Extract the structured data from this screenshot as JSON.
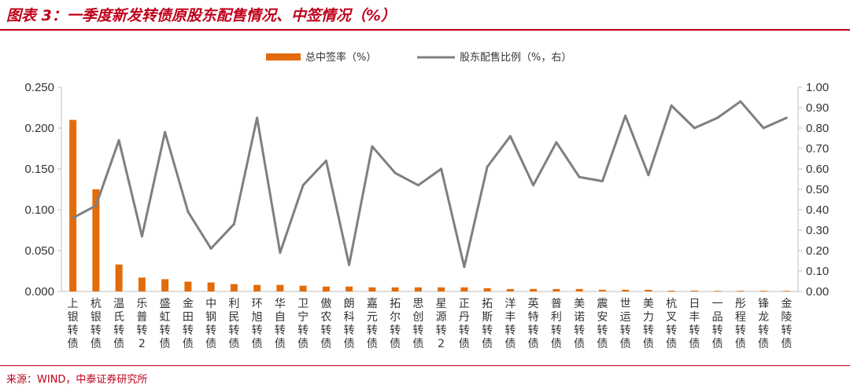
{
  "header": {
    "title": "图表 3：一季度新发转债原股东配售情况、中签情况（%）"
  },
  "footer": {
    "source": "来源：WIND，中泰证券研究所"
  },
  "colors": {
    "bar": "#e36c0a",
    "line": "#7f7f7f",
    "accent": "#c0001b"
  },
  "chart_data": {
    "type": "bar",
    "categories": [
      "上银转债",
      "杭银转债",
      "温氏转债",
      "乐普转2",
      "盛虹转债",
      "金田转债",
      "中钢转债",
      "利民转债",
      "环旭转债",
      "华自转债",
      "卫宁转债",
      "傲农转债",
      "朗科转债",
      "嘉元转债",
      "拓尔转债",
      "思创转债",
      "星源转2",
      "正丹转债",
      "拓斯转债",
      "洋丰转债",
      "英特转债",
      "普利转债",
      "美诺转债",
      "震安转债",
      "世运转债",
      "美力转债",
      "杭叉转债",
      "日丰转债",
      "一品转债",
      "彤程转债",
      "锋龙转债",
      "金陵转债"
    ],
    "series": [
      {
        "name": "总中签率（%）",
        "type": "bar",
        "axis": "left",
        "values": [
          0.21,
          0.125,
          0.033,
          0.017,
          0.015,
          0.012,
          0.011,
          0.009,
          0.008,
          0.008,
          0.007,
          0.006,
          0.006,
          0.005,
          0.005,
          0.005,
          0.005,
          0.005,
          0.004,
          0.003,
          0.003,
          0.003,
          0.003,
          0.002,
          0.002,
          0.002,
          0.001,
          0.001,
          0.0005,
          0.0005,
          0.0005,
          0.0005
        ]
      },
      {
        "name": "股东配售比例（%，右）",
        "type": "line",
        "axis": "right",
        "values": [
          0.36,
          0.42,
          0.74,
          0.27,
          0.78,
          0.39,
          0.21,
          0.33,
          0.85,
          0.19,
          0.52,
          0.64,
          0.13,
          0.71,
          0.58,
          0.52,
          0.6,
          0.12,
          0.61,
          0.76,
          0.52,
          0.73,
          0.56,
          0.54,
          0.86,
          0.57,
          0.91,
          0.8,
          0.85,
          0.93,
          0.8,
          0.85
        ]
      }
    ],
    "y_left": {
      "min": 0,
      "max": 0.25,
      "ticks": [
        "0.000",
        "0.050",
        "0.100",
        "0.150",
        "0.200",
        "0.250"
      ]
    },
    "y_right": {
      "min": 0,
      "max": 1.0,
      "ticks": [
        "0.00",
        "0.10",
        "0.20",
        "0.30",
        "0.40",
        "0.50",
        "0.60",
        "0.70",
        "0.80",
        "0.90",
        "1.00"
      ]
    },
    "legend_position": "top-center",
    "grid": false
  }
}
